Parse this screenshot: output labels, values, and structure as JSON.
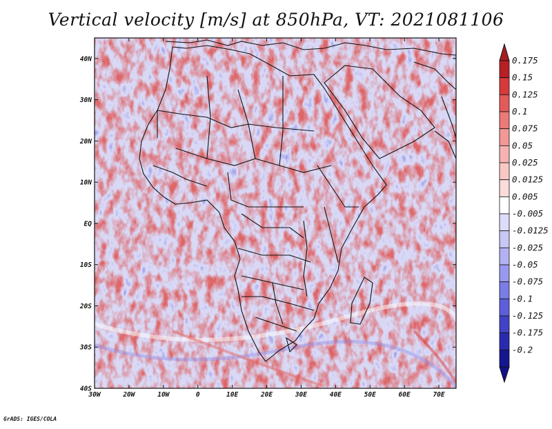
{
  "title": "Vertical velocity [m/s] at 850hPa, VT: 2021081106",
  "credit": "GrADS: IGES/COLA",
  "map": {
    "lat_ticks": [
      "40N",
      "30N",
      "20N",
      "10N",
      "EQ",
      "10S",
      "20S",
      "30S",
      "40S"
    ],
    "lon_ticks": [
      "30W",
      "20W",
      "10W",
      "0",
      "10E",
      "20E",
      "30E",
      "40E",
      "50E",
      "60E",
      "70E"
    ],
    "lat_range": [
      -40,
      45
    ],
    "lon_range": [
      -30,
      75
    ]
  },
  "colorbar": {
    "labels": [
      "0.175",
      "0.15",
      "0.125",
      "0.1",
      "0.075",
      "0.05",
      "0.025",
      "0.0125",
      "0.005",
      "-0.005",
      "-0.0125",
      "-0.025",
      "-0.05",
      "-0.075",
      "-0.1",
      "-0.125",
      "-0.175",
      "-0.2"
    ],
    "colors": [
      "#b82025",
      "#d73a3a",
      "#e45a5a",
      "#ec7a78",
      "#f29896",
      "#f6b2b0",
      "#f9c8c6",
      "#fbdcdb",
      "#ffffff",
      "#dcdcfb",
      "#c8c8f6",
      "#b2b2f2",
      "#9898ee",
      "#7c7ce6",
      "#5e5edc",
      "#4242c8",
      "#2a2ab0",
      "#161690"
    ],
    "top_arrow_color": "#a51c22",
    "bottom_arrow_color": "#12108a"
  }
}
